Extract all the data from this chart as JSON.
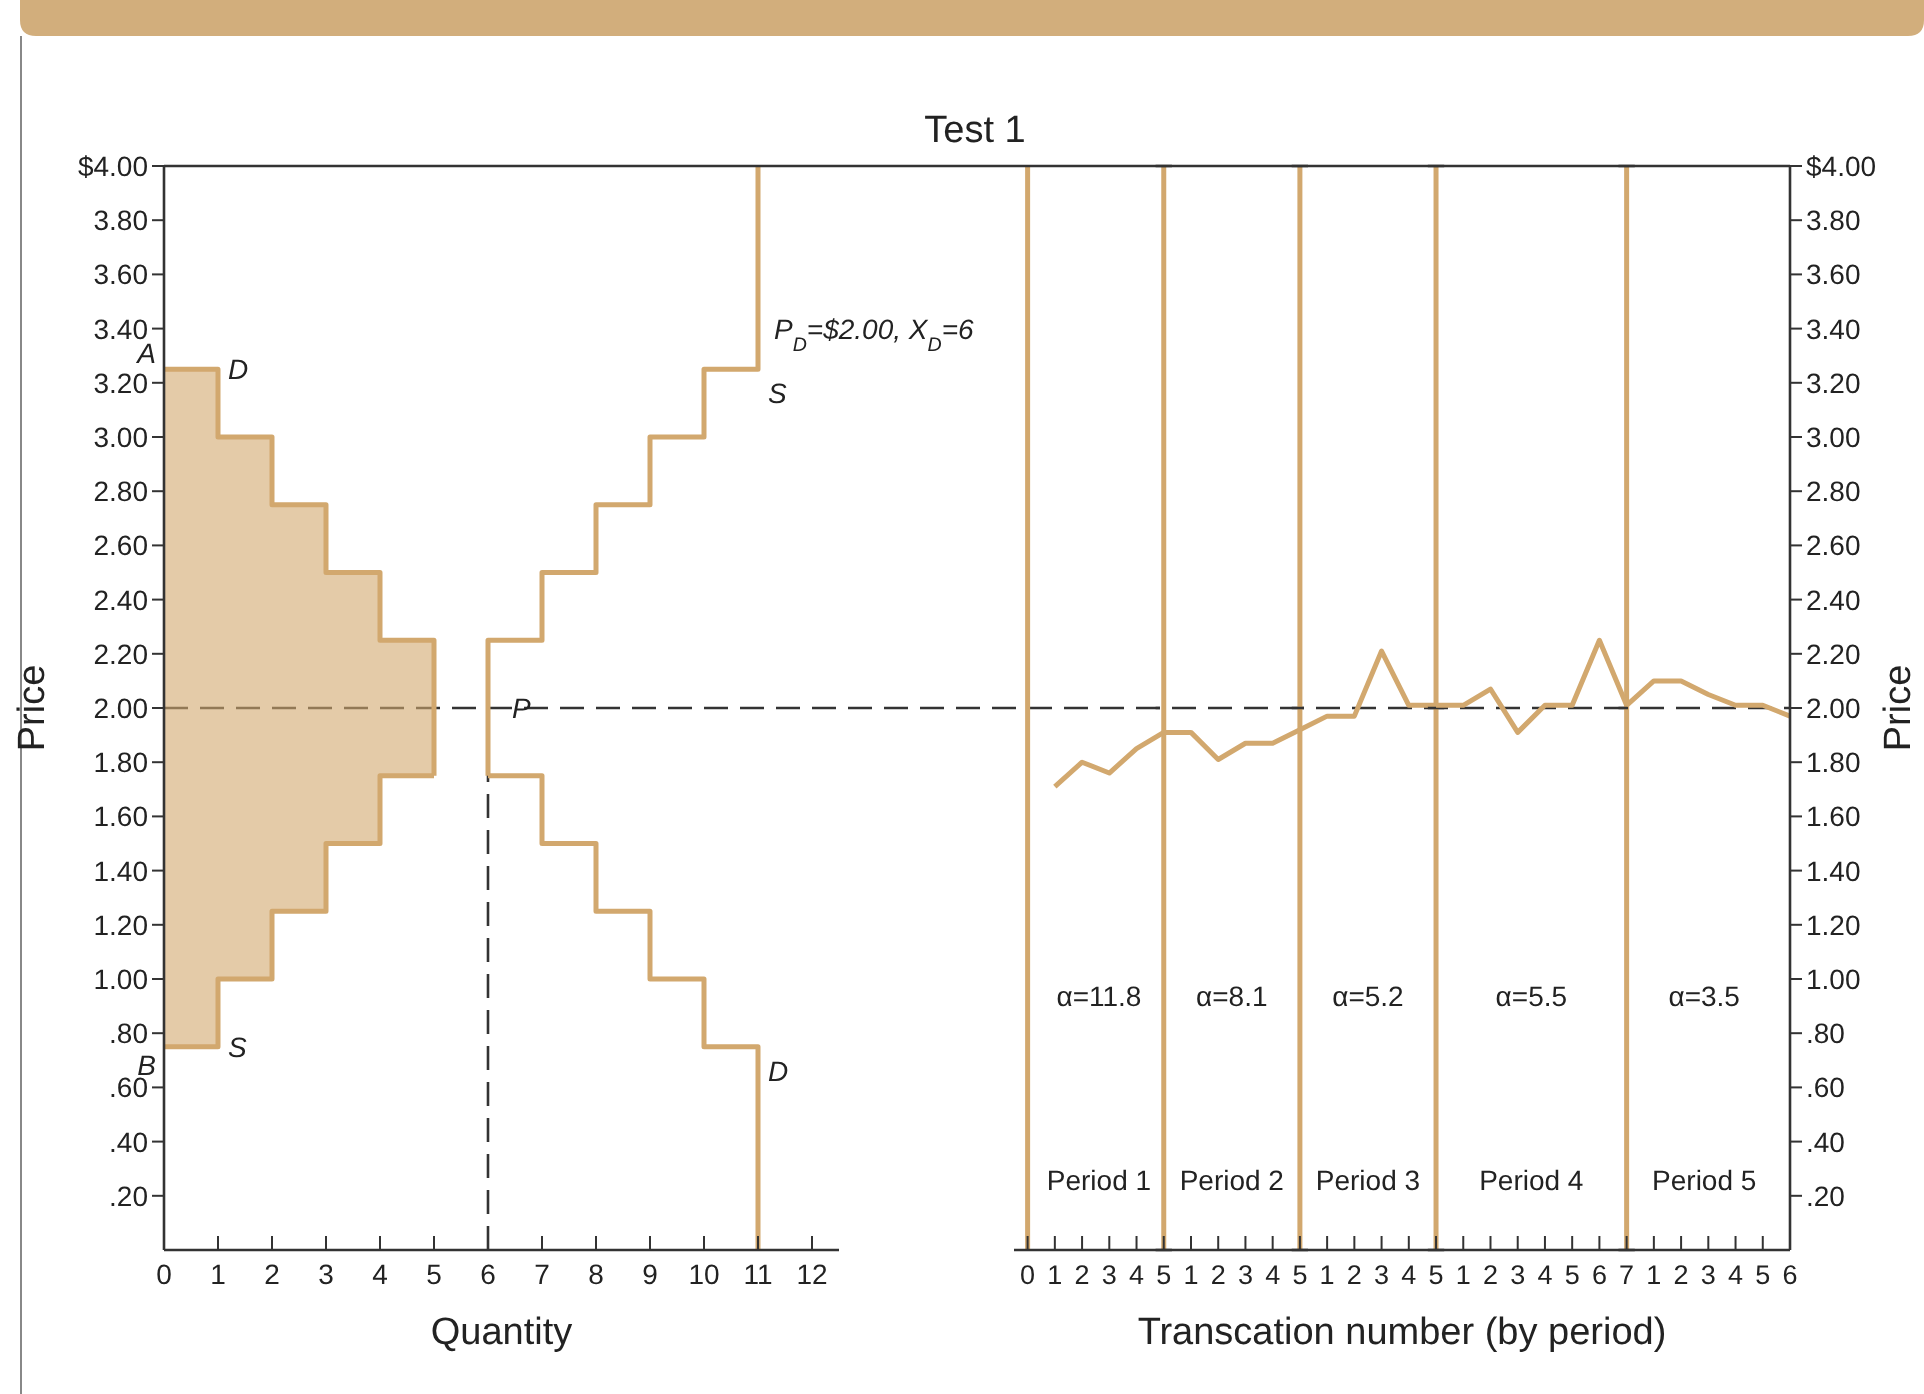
{
  "chart_data": [
    {
      "type": "step",
      "xlabel": "Quantity",
      "ylabel": "Price",
      "xlim": [
        0,
        12.5
      ],
      "xticks": [
        0,
        1,
        2,
        3,
        4,
        5,
        6,
        7,
        8,
        9,
        10,
        11,
        12
      ],
      "ylim": [
        0,
        4
      ],
      "yticks": [
        {
          "value": 0.2,
          "label": ".20"
        },
        {
          "value": 0.4,
          "label": ".40"
        },
        {
          "value": 0.6,
          "label": ".60"
        },
        {
          "value": 0.8,
          "label": ".80"
        },
        {
          "value": 1,
          "label": "1.00"
        },
        {
          "value": 1.2,
          "label": "1.20"
        },
        {
          "value": 1.4,
          "label": "1.40"
        },
        {
          "value": 1.6,
          "label": "1.60"
        },
        {
          "value": 1.8,
          "label": "1.80"
        },
        {
          "value": 2,
          "label": "2.00"
        },
        {
          "value": 2.2,
          "label": "2.20"
        },
        {
          "value": 2.4,
          "label": "2.40"
        },
        {
          "value": 2.6,
          "label": "2.60"
        },
        {
          "value": 2.8,
          "label": "2.80"
        },
        {
          "value": 3,
          "label": "3.00"
        },
        {
          "value": 3.2,
          "label": "3.20"
        },
        {
          "value": 3.4,
          "label": "3.40"
        },
        {
          "value": 3.6,
          "label": "3.60"
        },
        {
          "value": 3.8,
          "label": "3.80"
        },
        {
          "value": 4,
          "label": "$4.00"
        }
      ],
      "series": [
        {
          "name": "D",
          "color": "#d2a86e",
          "x": [
            0,
            1,
            2,
            3,
            4,
            5,
            5
          ],
          "values": [
            3.25,
            3,
            2.75,
            2.5,
            2.25,
            2.25,
            1.75
          ],
          "lower": [
            0.75,
            1,
            1.25,
            1.5,
            1.75,
            1.75,
            1.75
          ],
          "upper": [
            3.25,
            3,
            2.75,
            2.5,
            2.25,
            2.25,
            1.75
          ]
        },
        {
          "name": "S",
          "color": "#d2a86e",
          "x": [
            0,
            1,
            2,
            3,
            4,
            5
          ],
          "values": [
            0.75,
            1,
            1.25,
            1.5,
            1.75,
            1.75
          ]
        },
        {
          "name": "S",
          "color": "#d2a86e",
          "x": [
            6,
            6,
            7,
            8,
            9,
            10,
            11,
            11
          ],
          "values": [
            1.75,
            2.25,
            2.5,
            2.75,
            3,
            3.25,
            3.25,
            4
          ]
        },
        {
          "name": "D",
          "color": "#d2a86e",
          "x": [
            6,
            7,
            8,
            9,
            10,
            11,
            11
          ],
          "values": [
            1.75,
            1.5,
            1.25,
            1,
            0.75,
            0.75,
            0
          ]
        }
      ],
      "ref_lines": [
        {
          "axis": "y",
          "value": 2,
          "color": "#333333",
          "line_style": "dashed"
        },
        {
          "axis": "x",
          "value": 6,
          "color": "#333333",
          "line_style": "dashed"
        }
      ],
      "annotations": [
        {
          "text": "A",
          "x": 0,
          "y": 3.25
        },
        {
          "text": "B",
          "x": 0,
          "y": 0.75
        },
        {
          "text": "P",
          "x": 6,
          "y": 2
        },
        {
          "text": "P$_{D}$=$2.00, X$_{D}$=6",
          "x": 11,
          "y": 3.4
        }
      ],
      "grid": false,
      "legend": false
    },
    {
      "type": "line",
      "title": "Test 1",
      "xlim": [
        -0.5,
        5.3
      ],
      "xticks": [
        0,
        1,
        2,
        3,
        4,
        5
      ],
      "ylim": [
        0,
        4
      ],
      "tick_labels": "x",
      "series": [
        {
          "color": "#d2a86e",
          "x": [
            1,
            2,
            3,
            4,
            5
          ],
          "values": [
            1.71,
            1.8,
            1.76,
            1.85,
            1.91
          ]
        }
      ],
      "ref_lines": [
        {
          "axis": "y",
          "value": 2,
          "color": "#333333",
          "line_style": "dashed"
        },
        {
          "axis": "x",
          "value": 0,
          "color": "#d2a86e",
          "line_style": "solid"
        },
        {
          "axis": "x",
          "value": 5,
          "color": "#d2a86e",
          "line_style": "solid"
        }
      ],
      "annotations": [
        "α=11.8",
        "Period 1"
      ],
      "grid": false,
      "legend": false
    },
    {
      "type": "line",
      "xlim": [
        -0.3,
        5.3
      ],
      "xticks": [
        1,
        2,
        3,
        4,
        5
      ],
      "ylim": [
        0,
        4
      ],
      "tick_labels": "x",
      "series": [
        {
          "color": "#d2a86e",
          "x": [
            0,
            1,
            2,
            3,
            4,
            5
          ],
          "values": [
            1.91,
            1.91,
            1.81,
            1.87,
            1.87,
            1.92
          ]
        }
      ],
      "ref_lines": [
        {
          "axis": "y",
          "value": 2,
          "color": "#333333",
          "line_style": "dashed"
        },
        {
          "axis": "x",
          "value": 5,
          "color": "#d2a86e",
          "line_style": "solid"
        }
      ],
      "annotations": [
        "α=8.1",
        "Period 2"
      ],
      "grid": false,
      "legend": false
    },
    {
      "type": "line",
      "xlabel": "Transcation number (by period)",
      "xlim": [
        -0.3,
        5.3
      ],
      "xticks": [
        1,
        2,
        3,
        4,
        5
      ],
      "ylim": [
        0,
        4
      ],
      "tick_labels": "x",
      "series": [
        {
          "color": "#d2a86e",
          "x": [
            0,
            1,
            2,
            3,
            4,
            5
          ],
          "values": [
            1.92,
            1.97,
            1.97,
            2.21,
            2.01,
            2.01
          ]
        }
      ],
      "ref_lines": [
        {
          "axis": "y",
          "value": 2,
          "color": "#333333",
          "line_style": "dashed"
        },
        {
          "axis": "x",
          "value": 5,
          "color": "#d2a86e",
          "line_style": "solid"
        }
      ],
      "annotations": [
        "α=5.2",
        "Period 3"
      ],
      "grid": false,
      "legend": false
    },
    {
      "type": "line",
      "xlim": [
        -0.3,
        7.3
      ],
      "xticks": [
        1,
        2,
        3,
        4,
        5,
        6,
        7
      ],
      "ylim": [
        0,
        4
      ],
      "tick_labels": "x",
      "series": [
        {
          "color": "#d2a86e",
          "x": [
            0,
            1,
            2,
            3,
            4,
            5,
            6,
            7
          ],
          "values": [
            2.01,
            2.01,
            2.07,
            1.91,
            2.01,
            2.01,
            2.25,
            2.01
          ]
        }
      ],
      "ref_lines": [
        {
          "axis": "y",
          "value": 2,
          "color": "#333333",
          "line_style": "dashed"
        },
        {
          "axis": "x",
          "value": 7,
          "color": "#d2a86e",
          "line_style": "solid"
        }
      ],
      "annotations": [
        "α=5.5",
        "Period 4"
      ],
      "grid": false,
      "legend": false
    },
    {
      "type": "line",
      "ylabel": "Price",
      "xlim": [
        -0.3,
        6
      ],
      "xticks": [
        1,
        2,
        3,
        4,
        5,
        6
      ],
      "ylim": [
        0,
        4
      ],
      "yticks": [
        {
          "value": 0.2,
          "label": ".20"
        },
        {
          "value": 0.4,
          "label": ".40"
        },
        {
          "value": 0.6,
          "label": ".60"
        },
        {
          "value": 0.8,
          "label": ".80"
        },
        {
          "value": 1,
          "label": "1.00"
        },
        {
          "value": 1.2,
          "label": "1.20"
        },
        {
          "value": 1.4,
          "label": "1.40"
        },
        {
          "value": 1.6,
          "label": "1.60"
        },
        {
          "value": 1.8,
          "label": "1.80"
        },
        {
          "value": 2,
          "label": "2.00"
        },
        {
          "value": 2.2,
          "label": "2.20"
        },
        {
          "value": 2.4,
          "label": "2.40"
        },
        {
          "value": 2.6,
          "label": "2.60"
        },
        {
          "value": 2.8,
          "label": "2.80"
        },
        {
          "value": 3,
          "label": "3.00"
        },
        {
          "value": 3.2,
          "label": "3.20"
        },
        {
          "value": 3.4,
          "label": "3.40"
        },
        {
          "value": 3.6,
          "label": "3.60"
        },
        {
          "value": 3.8,
          "label": "3.80"
        },
        {
          "value": 4,
          "label": "$4.00"
        }
      ],
      "series": [
        {
          "color": "#d2a86e",
          "x": [
            0,
            1,
            2,
            3,
            4,
            5,
            6
          ],
          "values": [
            2.01,
            2.1,
            2.1,
            2.05,
            2.01,
            2.01,
            1.97
          ]
        }
      ],
      "ref_lines": [
        {
          "axis": "y",
          "value": 2,
          "color": "#333333",
          "line_style": "dashed"
        }
      ],
      "annotations": [
        "α=3.5",
        "Period 5"
      ],
      "grid": false,
      "legend": false
    }
  ]
}
